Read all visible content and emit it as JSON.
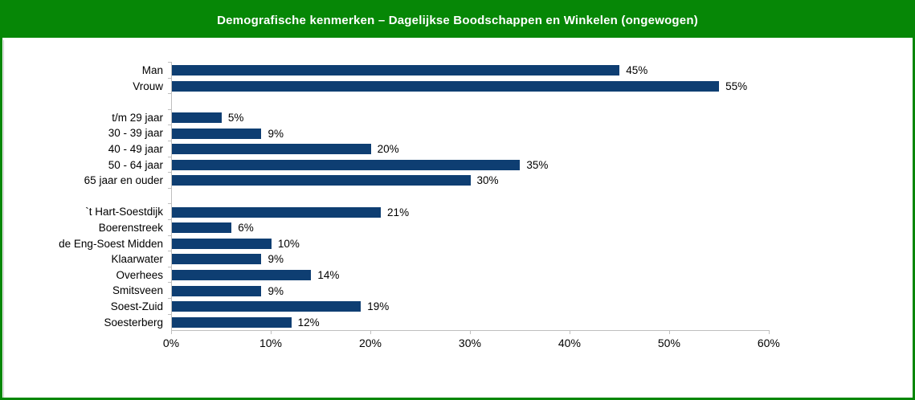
{
  "header": {
    "title": "Demografische kenmerken – Dagelijkse Boodschappen en Winkelen (ongewogen)",
    "bg_color": "#068706",
    "text_color": "#ffffff"
  },
  "chart_data": {
    "type": "bar",
    "orientation": "horizontal",
    "title": "Demografische kenmerken – Dagelijkse Boodschappen en Winkelen (ongewogen)",
    "xlim": [
      0,
      60
    ],
    "x_tick_values": [
      0,
      10,
      20,
      30,
      40,
      50,
      60
    ],
    "x_tick_labels": [
      "0%",
      "10%",
      "20%",
      "30%",
      "40%",
      "50%",
      "60%"
    ],
    "bar_color": "#0e3e72",
    "axis_color": "#bfbfbf",
    "value_labels_shown": true,
    "groups": [
      {
        "items": [
          {
            "label": "Man",
            "value": 45,
            "display": "45%"
          },
          {
            "label": "Vrouw",
            "value": 55,
            "display": "55%"
          }
        ]
      },
      {
        "items": [
          {
            "label": "t/m 29 jaar",
            "value": 5,
            "display": "5%"
          },
          {
            "label": "30 - 39 jaar",
            "value": 9,
            "display": "9%"
          },
          {
            "label": "40 - 49 jaar",
            "value": 20,
            "display": "20%"
          },
          {
            "label": "50 - 64 jaar",
            "value": 35,
            "display": "35%"
          },
          {
            "label": "65 jaar en ouder",
            "value": 30,
            "display": "30%"
          }
        ]
      },
      {
        "items": [
          {
            "label": "`t Hart-Soestdijk",
            "value": 21,
            "display": "21%"
          },
          {
            "label": "Boerenstreek",
            "value": 6,
            "display": "6%"
          },
          {
            "label": "de Eng-Soest Midden",
            "value": 10,
            "display": "10%"
          },
          {
            "label": "Klaarwater",
            "value": 9,
            "display": "9%"
          },
          {
            "label": "Overhees",
            "value": 14,
            "display": "14%"
          },
          {
            "label": "Smitsveen",
            "value": 9,
            "display": "9%"
          },
          {
            "label": "Soest-Zuid",
            "value": 19,
            "display": "19%"
          },
          {
            "label": "Soesterberg",
            "value": 12,
            "display": "12%"
          }
        ]
      }
    ]
  }
}
